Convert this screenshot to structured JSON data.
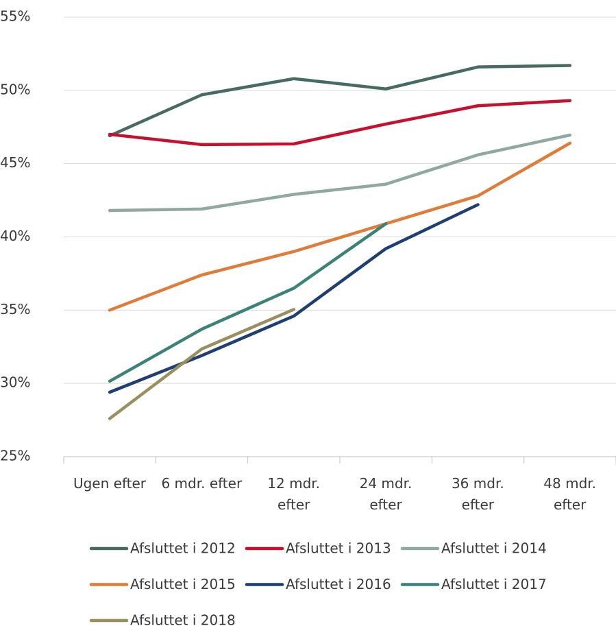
{
  "chart_data": {
    "type": "line",
    "categories": [
      "Ugen efter",
      "6 mdr. efter",
      "12 mdr.\nefter",
      "24 mdr.\nefter",
      "36 mdr.\nefter",
      "48 mdr.\nefter"
    ],
    "ylim": [
      25,
      55
    ],
    "yticks": [
      {
        "value": 25,
        "label": "25%"
      },
      {
        "value": 30,
        "label": "30%"
      },
      {
        "value": 35,
        "label": "35%"
      },
      {
        "value": 40,
        "label": "40%"
      },
      {
        "value": 45,
        "label": "45%"
      },
      {
        "value": 50,
        "label": "50%"
      },
      {
        "value": 55,
        "label": "55%"
      }
    ],
    "grid": true,
    "legend": "bottom",
    "series": [
      {
        "name": "Afsluttet i 2012",
        "color": "#476a63",
        "values": [
          46.9,
          49.7,
          50.8,
          50.1,
          51.6,
          51.7
        ]
      },
      {
        "name": "Afsluttet i 2013",
        "color": "#c8102e",
        "values": [
          47.0,
          46.3,
          46.35,
          47.7,
          48.95,
          49.3
        ]
      },
      {
        "name": "Afsluttet i 2014",
        "color": "#8fa9a0",
        "values": [
          41.8,
          41.9,
          42.9,
          43.6,
          45.6,
          46.95
        ]
      },
      {
        "name": "Afsluttet i 2015",
        "color": "#e07b39",
        "values": [
          35.0,
          37.4,
          39.0,
          40.9,
          42.8,
          46.4
        ]
      },
      {
        "name": "Afsluttet i 2016",
        "color": "#1f3f73",
        "values": [
          29.4,
          31.9,
          34.6,
          39.2,
          42.2,
          null
        ]
      },
      {
        "name": "Afsluttet i 2017",
        "color": "#3b8279",
        "values": [
          30.15,
          33.7,
          36.5,
          40.9,
          null,
          null
        ]
      },
      {
        "name": "Afsluttet i 2018",
        "color": "#9a8f5f",
        "values": [
          27.6,
          32.35,
          35.05,
          null,
          null,
          null
        ]
      }
    ]
  }
}
